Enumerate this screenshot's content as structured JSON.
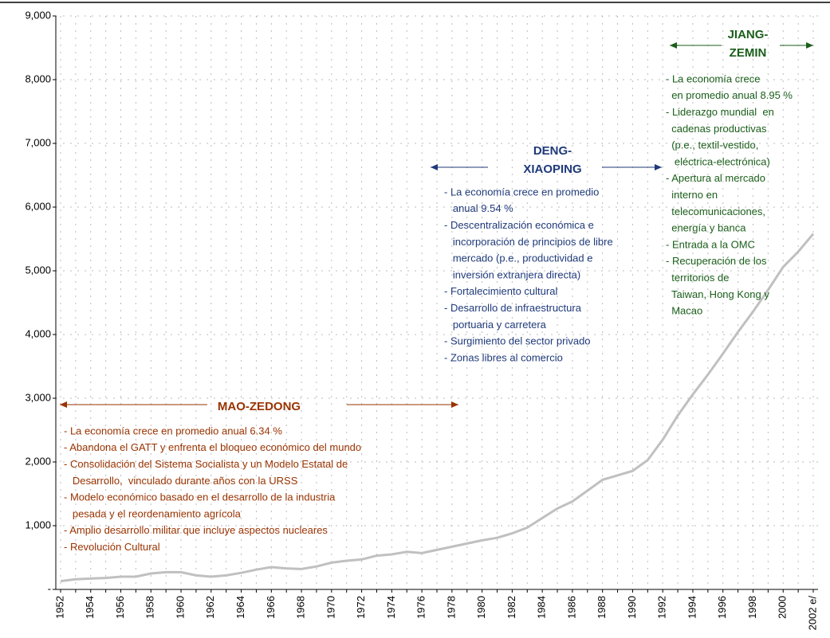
{
  "chart_data": {
    "type": "line",
    "categories": [
      "1952",
      null,
      "1954",
      null,
      "1956",
      null,
      "1958",
      null,
      "1960",
      null,
      "1962",
      null,
      "1964",
      null,
      "1966",
      null,
      "1968",
      null,
      "1970",
      null,
      "1972",
      null,
      "1974",
      null,
      "1976",
      null,
      "1978",
      null,
      "1980",
      null,
      "1982",
      null,
      "1984",
      null,
      "1986",
      null,
      "1988",
      null,
      "1990",
      null,
      "1992",
      null,
      "1994",
      null,
      "1996",
      null,
      "1998",
      null,
      "2000",
      null,
      "2002 e/"
    ],
    "values": [
      130,
      160,
      170,
      180,
      200,
      200,
      250,
      270,
      270,
      220,
      200,
      220,
      260,
      310,
      350,
      330,
      320,
      360,
      420,
      450,
      470,
      530,
      550,
      590,
      570,
      620,
      670,
      720,
      770,
      810,
      880,
      970,
      1120,
      1270,
      1380,
      1550,
      1720,
      1790,
      1860,
      2030,
      2350,
      2730,
      3060,
      3370,
      3700,
      4040,
      4360,
      4700,
      5060,
      5300,
      5580
    ],
    "color": "#c0c0c0",
    "ylim": [
      0,
      9000
    ],
    "yticks": [
      {
        "value": 0,
        "label": "-"
      },
      {
        "value": 1000,
        "label": "1,000"
      },
      {
        "value": 2000,
        "label": "2,000"
      },
      {
        "value": 3000,
        "label": "3,000"
      },
      {
        "value": 4000,
        "label": "4,000"
      },
      {
        "value": 5000,
        "label": "5,000"
      },
      {
        "value": 6000,
        "label": "6,000"
      },
      {
        "value": 7000,
        "label": "7,000"
      },
      {
        "value": 8000,
        "label": "8,000"
      },
      {
        "value": 9000,
        "label": "9,000"
      }
    ],
    "grid": true,
    "annotations": [
      {
        "title_lines": [
          "MAO-ZEDONG"
        ],
        "color": "#993300",
        "lines": [
          "- La economía crece en promedio anual 6.34 %",
          "- Abandona el GATT y enfrenta el bloqueo económico del mundo",
          "- Consolidación del Sistema Socialista y un Modelo Estatal de",
          "   Desarrollo,  vinculado durante años con la URSS",
          "- Modelo económico basado en el desarrollo de la industria",
          "   pesada y el reordenamiento agrícola",
          "- Amplio desarrollo militar que incluye aspectos nucleares",
          "- Revolución Cultural"
        ]
      },
      {
        "title_lines": [
          "DENG-",
          "XIAOPING"
        ],
        "color": "#1f3a7a",
        "lines": [
          "- La economía crece en promedio",
          "   anual 9.54 %",
          "- Descentralización económica e",
          "   incorporación de principios de libre",
          "   mercado (p.e., productividad e",
          "   inversión extranjera directa)",
          "- Fortalecimiento cultural",
          "- Desarrollo de infraestructura",
          "   portuaria y carretera",
          "- Surgimiento del sector privado",
          "- Zonas libres al comercio"
        ]
      },
      {
        "title_lines": [
          "JIANG-",
          "ZEMIN"
        ],
        "color": "#1a5e1a",
        "lines": [
          "- La economía crece",
          "  en promedio anual 8.95 %",
          "- Liderazgo mundial  en",
          "  cadenas productivas",
          "  (p.e., textil-vestido,",
          "   eléctrica-electrónica)",
          "- Apertura al mercado",
          "  interno en",
          "  telecomunicaciones,",
          "  energía y banca",
          "- Entrada a la OMC",
          "- Recuperación de los",
          "  territorios de",
          "  Taiwan, Hong Kong y",
          "  Macao"
        ]
      }
    ]
  }
}
